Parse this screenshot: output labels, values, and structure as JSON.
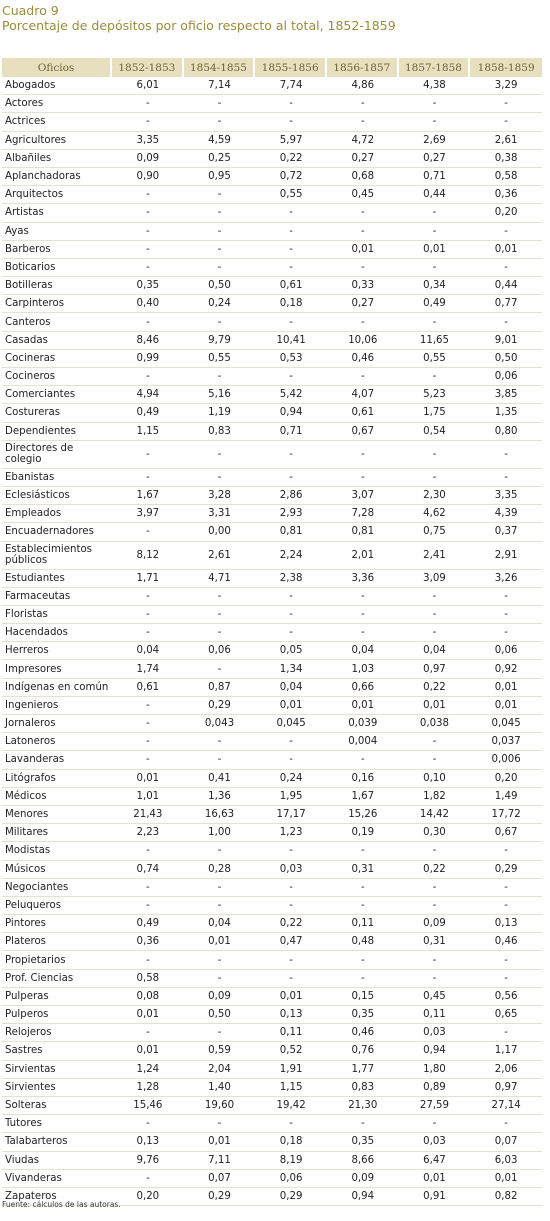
{
  "header": {
    "label": "Cuadro 9",
    "title": "Porcentaje de depósitos por oficio respecto al total, 1852-1859"
  },
  "table": {
    "columns": [
      "Oficios",
      "1852-1853",
      "1854-1855",
      "1855-1856",
      "1856-1857",
      "1857-1858",
      "1858-1859"
    ],
    "rows": [
      [
        "Abogados",
        "6,01",
        "7,14",
        "7,74",
        "4,86",
        "4,38",
        "3,29"
      ],
      [
        "Actores",
        "-",
        "-",
        "-",
        "-",
        "-",
        "-"
      ],
      [
        "Actrices",
        "-",
        "-",
        "-",
        "-",
        "-",
        "-"
      ],
      [
        "Agricultores",
        "3,35",
        "4,59",
        "5,97",
        "4,72",
        "2,69",
        "2,61"
      ],
      [
        "Albañiles",
        "0,09",
        "0,25",
        "0,22",
        "0,27",
        "0,27",
        "0,38"
      ],
      [
        "Aplanchadoras",
        "0,90",
        "0,95",
        "0,72",
        "0,68",
        "0,71",
        "0,58"
      ],
      [
        "Arquitectos",
        "-",
        "-",
        "0,55",
        "0,45",
        "0,44",
        "0,36"
      ],
      [
        "Artistas",
        "-",
        "-",
        "-",
        "-",
        "-",
        "0,20"
      ],
      [
        "Ayas",
        "-",
        "-",
        "-",
        "-",
        "-",
        "-"
      ],
      [
        "Barberos",
        "-",
        "-",
        "-",
        "0,01",
        "0,01",
        "0,01"
      ],
      [
        "Boticarios",
        "-",
        "-",
        "-",
        "-",
        "-",
        "-"
      ],
      [
        "Botilleras",
        "0,35",
        "0,50",
        "0,61",
        "0,33",
        "0,34",
        "0,44"
      ],
      [
        "Carpinteros",
        "0,40",
        "0,24",
        "0,18",
        "0,27",
        "0,49",
        "0,77"
      ],
      [
        "Canteros",
        "-",
        "-",
        "-",
        "-",
        "-",
        "-"
      ],
      [
        "Casadas",
        "8,46",
        "9,79",
        "10,41",
        "10,06",
        "11,65",
        "9,01"
      ],
      [
        "Cocineras",
        "0,99",
        "0,55",
        "0,53",
        "0,46",
        "0,55",
        "0,50"
      ],
      [
        "Cocineros",
        "-",
        "-",
        "-",
        "-",
        "-",
        "0,06"
      ],
      [
        "Comerciantes",
        "4,94",
        "5,16",
        "5,42",
        "4,07",
        "5,23",
        "3,85"
      ],
      [
        "Costureras",
        "0,49",
        "1,19",
        "0,94",
        "0,61",
        "1,75",
        "1,35"
      ],
      [
        "Dependientes",
        "1,15",
        "0,83",
        "0,71",
        "0,67",
        "0,54",
        "0,80"
      ],
      [
        "Directores de colegio",
        "-",
        "-",
        "-",
        "-",
        "-",
        "-"
      ],
      [
        "Ebanistas",
        "-",
        "-",
        "-",
        "-",
        "-",
        "-"
      ],
      [
        "Eclesiásticos",
        "1,67",
        "3,28",
        "2,86",
        "3,07",
        "2,30",
        "3,35"
      ],
      [
        "Empleados",
        "3,97",
        "3,31",
        "2,93",
        "7,28",
        "4,62",
        "4,39"
      ],
      [
        "Encuadernadores",
        "-",
        "0,00",
        "0,81",
        "0,81",
        "0,75",
        "0,37"
      ],
      [
        "Establecimientos públicos",
        "8,12",
        "2,61",
        "2,24",
        "2,01",
        "2,41",
        "2,91"
      ],
      [
        "Estudiantes",
        "1,71",
        "4,71",
        "2,38",
        "3,36",
        "3,09",
        "3,26"
      ],
      [
        "Farmaceutas",
        "-",
        "-",
        "-",
        "-",
        "-",
        "-"
      ],
      [
        "Floristas",
        "-",
        "-",
        "-",
        "-",
        "-",
        "-"
      ],
      [
        "Hacendados",
        "-",
        "-",
        "-",
        "-",
        "-",
        "-"
      ],
      [
        "Herreros",
        "0,04",
        "0,06",
        "0,05",
        "0,04",
        "0,04",
        "0,06"
      ],
      [
        "Impresores",
        "1,74",
        "-",
        "1,34",
        "1,03",
        "0,97",
        "0,92"
      ],
      [
        "Indígenas en común",
        "0,61",
        "0,87",
        "0,04",
        "0,66",
        "0,22",
        "0,01"
      ],
      [
        "Ingenieros",
        "-",
        "0,29",
        "0,01",
        "0,01",
        "0,01",
        "0,01"
      ],
      [
        "Jornaleros",
        "-",
        "0,043",
        "0,045",
        "0,039",
        "0,038",
        "0,045"
      ],
      [
        "Latoneros",
        "-",
        "-",
        "-",
        "0,004",
        "-",
        "0,037"
      ],
      [
        "Lavanderas",
        "-",
        "-",
        "-",
        "-",
        "-",
        "0,006"
      ],
      [
        "Litógrafos",
        "0,01",
        "0,41",
        "0,24",
        "0,16",
        "0,10",
        "0,20"
      ],
      [
        "Médicos",
        "1,01",
        "1,36",
        "1,95",
        "1,67",
        "1,82",
        "1,49"
      ],
      [
        "Menores",
        "21,43",
        "16,63",
        "17,17",
        "15,26",
        "14,42",
        "17,72"
      ],
      [
        "Militares",
        "2,23",
        "1,00",
        "1,23",
        "0,19",
        "0,30",
        "0,67"
      ],
      [
        "Modistas",
        "-",
        "-",
        "-",
        "-",
        "-",
        "-"
      ],
      [
        "Músicos",
        "0,74",
        "0,28",
        "0,03",
        "0,31",
        "0,22",
        "0,29"
      ],
      [
        "Negociantes",
        "-",
        "-",
        "-",
        "-",
        "-",
        "-"
      ],
      [
        "Peluqueros",
        "-",
        "-",
        "-",
        "-",
        "-",
        "-"
      ],
      [
        "Pintores",
        "0,49",
        "0,04",
        "0,22",
        "0,11",
        "0,09",
        "0,13"
      ],
      [
        "Plateros",
        "0,36",
        "0,01",
        "0,47",
        "0,48",
        "0,31",
        "0,46"
      ],
      [
        "Propietarios",
        "-",
        "-",
        "-",
        "-",
        "-",
        "-"
      ],
      [
        "Prof. Ciencias",
        "0,58",
        "-",
        "-",
        "-",
        "-",
        "-"
      ],
      [
        "Pulperas",
        "0,08",
        "0,09",
        "0,01",
        "0,15",
        "0,45",
        "0,56"
      ],
      [
        "Pulperos",
        "0,01",
        "0,50",
        "0,13",
        "0,35",
        "0,11",
        "0,65"
      ],
      [
        "Relojeros",
        "-",
        "-",
        "0,11",
        "0,46",
        "0,03",
        "-"
      ],
      [
        "Sastres",
        "0,01",
        "0,59",
        "0,52",
        "0,76",
        "0,94",
        "1,17"
      ],
      [
        "Sirvientas",
        "1,24",
        "2,04",
        "1,91",
        "1,77",
        "1,80",
        "2,06"
      ],
      [
        "Sirvientes",
        "1,28",
        "1,40",
        "1,15",
        "0,83",
        "0,89",
        "0,97"
      ],
      [
        "Solteras",
        "15,46",
        "19,60",
        "19,42",
        "21,30",
        "27,59",
        "27,14"
      ],
      [
        "Tutores",
        "-",
        "-",
        "-",
        "-",
        "-",
        "-"
      ],
      [
        "Talabarteros",
        "0,13",
        "0,01",
        "0,18",
        "0,35",
        "0,03",
        "0,07"
      ],
      [
        "Viudas",
        "9,76",
        "7,11",
        "8,19",
        "8,66",
        "6,47",
        "6,03"
      ],
      [
        "Vivanderas",
        "-",
        "0,07",
        "0,06",
        "0,09",
        "0,01",
        "0,01"
      ],
      [
        "Zapateros",
        "0,20",
        "0,29",
        "0,29",
        "0,94",
        "0,91",
        "0,82"
      ]
    ]
  },
  "footer": {
    "source": "Fuente: cálculos de las autoras."
  }
}
